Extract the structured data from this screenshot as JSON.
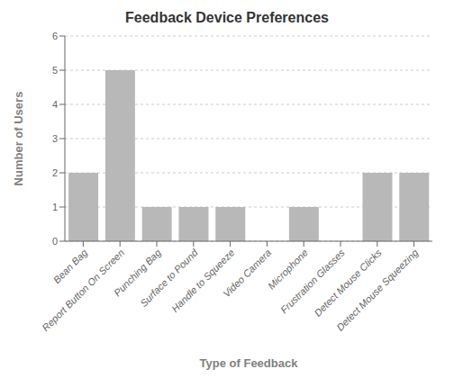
{
  "chart_data": {
    "type": "bar",
    "title": "Feedback Device Preferences",
    "xlabel": "Type of Feedback",
    "ylabel": "Number of Users",
    "categories": [
      "Bean Bag",
      "Report Button On Screen",
      "Punching Bag",
      "Surface to Pound",
      "Handle to Squeeze",
      "Video Camera",
      "Microphone",
      "Frustration Glasses",
      "Detect Mouse Clicks",
      "Detect Mouse Squeezing"
    ],
    "values": [
      2,
      5,
      1,
      1,
      1,
      0,
      1,
      0,
      2,
      2
    ],
    "color": "#b8b8b8",
    "ylim": [
      0,
      6
    ],
    "yticks": [
      0,
      1,
      2,
      3,
      4,
      5,
      6
    ],
    "grid": true
  }
}
